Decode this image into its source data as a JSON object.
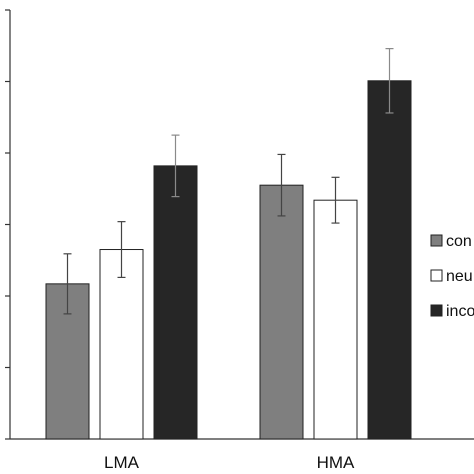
{
  "chart_data": {
    "type": "bar",
    "categories": [
      "LMA",
      "HMA"
    ],
    "series": [
      {
        "name": "con",
        "values": [
          2.17,
          3.55
        ],
        "errors": [
          0.42,
          0.43
        ],
        "color": "#7f7f7f"
      },
      {
        "name": "neu",
        "values": [
          2.65,
          3.34
        ],
        "errors": [
          0.39,
          0.32
        ],
        "color": "#ffffff"
      },
      {
        "name": "inco",
        "values": [
          3.82,
          5.01
        ],
        "errors": [
          0.43,
          0.45
        ],
        "color": "#262626"
      }
    ],
    "ylim": [
      0,
      6
    ],
    "yticks": [
      0,
      1,
      2,
      3,
      4,
      5,
      6
    ],
    "tick_labels_visible": false,
    "grid": false,
    "error_bars": true,
    "legend_position": "right"
  }
}
